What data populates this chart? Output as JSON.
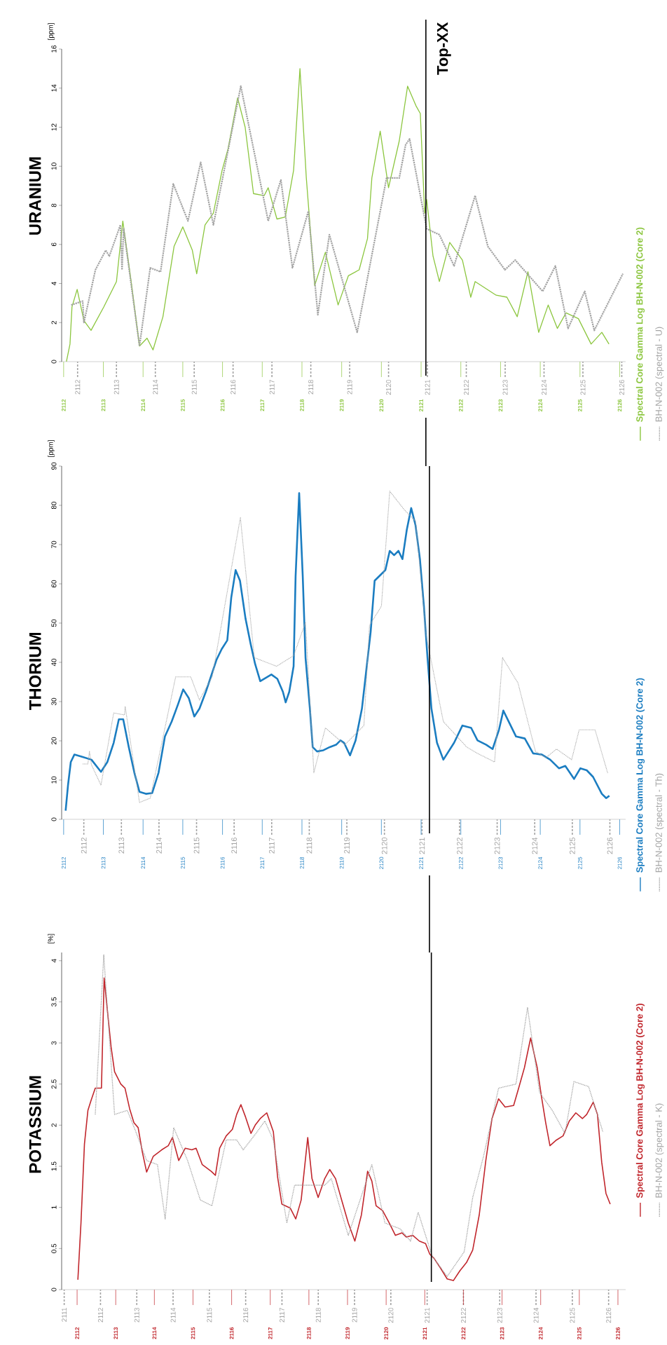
{
  "chart_data": [
    {
      "type": "line",
      "title": "URANIUM",
      "ylabel": "[ppm]",
      "legend": "right",
      "xlim": [
        2111.95,
        2126.15
      ],
      "ylim": [
        0,
        16
      ],
      "yticks": [
        0,
        2,
        4,
        6,
        8,
        10,
        12,
        14,
        16
      ],
      "xticks": [
        2112,
        2113,
        2114,
        2115,
        2116,
        2117,
        2118,
        2119,
        2120,
        2121,
        2122,
        2123,
        2124,
        2125,
        2126
      ],
      "x2lim": [
        2111.59,
        2126.1
      ],
      "x2ticks": [
        2112,
        2113,
        2114,
        2115,
        2116,
        2117,
        2118,
        2119,
        2120,
        2121,
        2122,
        2123,
        2124,
        2125,
        2126
      ],
      "ref_lines": [
        {
          "axis": "x",
          "value": 2121.12,
          "label": "Top-XX"
        }
      ],
      "series": [
        {
          "name": "Spectral Core Gamma Log BH-N-002 (Core 2)",
          "color": "#8cc63f",
          "line_style": "solid",
          "x": [
            2112.07,
            2112.16,
            2112.21,
            2112.34,
            2112.51,
            2112.69,
            2113.01,
            2113.33,
            2113.49,
            2113.7,
            2113.91,
            2114.1,
            2114.25,
            2114.5,
            2114.78,
            2115.0,
            2115.24,
            2115.35,
            2115.56,
            2115.77,
            2115.99,
            2116.14,
            2116.38,
            2116.57,
            2116.78,
            2117.05,
            2117.15,
            2117.37,
            2117.58,
            2117.79,
            2117.95,
            2118.11,
            2118.32,
            2118.59,
            2118.91,
            2119.17,
            2119.44,
            2119.65,
            2119.76,
            2119.97,
            2120.18,
            2120.45,
            2120.66,
            2120.87,
            2120.98,
            2121.09,
            2121.14,
            2121.3,
            2121.46,
            2121.72,
            2122.04,
            2122.25,
            2122.36,
            2122.89,
            2123.16,
            2123.42,
            2123.69,
            2123.96,
            2124.2,
            2124.43,
            2124.65,
            2124.96,
            2125.28,
            2125.55,
            2125.73
          ],
          "values": [
            0,
            0.9,
            2.8,
            3.7,
            2.1,
            1.6,
            2.8,
            4.1,
            7.2,
            4.1,
            0.8,
            1.2,
            0.6,
            2.3,
            5.9,
            6.9,
            5.7,
            4.5,
            7.0,
            7.6,
            9.8,
            10.9,
            13.5,
            12.0,
            8.6,
            8.5,
            8.9,
            7.3,
            7.4,
            9.8,
            15.0,
            9.4,
            3.9,
            5.6,
            2.9,
            4.4,
            4.7,
            6.3,
            9.4,
            11.8,
            8.9,
            11.3,
            14.1,
            13.1,
            12.7,
            7.6,
            8.3,
            5.4,
            4.1,
            6.1,
            5.2,
            3.3,
            4.1,
            3.4,
            3.3,
            2.3,
            4.6,
            1.5,
            2.9,
            1.7,
            2.5,
            2.2,
            0.9,
            1.5,
            0.9
          ]
        },
        {
          "name": "BH-N-002 (spectral - U)",
          "color": "#a3a3a3",
          "line_style": "dotted",
          "x": [
            2112.19,
            2112.48,
            2112.51,
            2112.8,
            2113.06,
            2113.15,
            2113.43,
            2113.47,
            2113.51,
            2113.91,
            2114.18,
            2114.44,
            2114.76,
            2115.13,
            2115.45,
            2115.77,
            2116.46,
            2117.15,
            2117.47,
            2117.76,
            2118.16,
            2118.4,
            2118.69,
            2119.39,
            2120.13,
            2120.45,
            2120.61,
            2120.71,
            2121.14,
            2121.46,
            2121.83,
            2122.36,
            2122.68,
            2123.11,
            2123.37,
            2124.06,
            2124.38,
            2124.7,
            2125.12,
            2125.36,
            2126.08
          ],
          "values": [
            2.9,
            3.1,
            2.0,
            4.7,
            5.7,
            5.4,
            7.0,
            4.7,
            6.8,
            0.8,
            4.8,
            4.6,
            9.1,
            7.2,
            10.2,
            7.0,
            14.1,
            7.2,
            9.3,
            4.8,
            7.7,
            2.4,
            6.5,
            1.5,
            9.4,
            9.4,
            11.1,
            11.4,
            6.8,
            6.5,
            4.9,
            8.5,
            5.9,
            4.7,
            5.2,
            3.6,
            4.9,
            1.7,
            3.6,
            1.6,
            4.5
          ]
        }
      ]
    },
    {
      "type": "line",
      "title": "THORIUM",
      "ylabel": "[ppm]",
      "legend": "right",
      "xlim": [
        2111.95,
        2126.15
      ],
      "ylim": [
        0,
        90
      ],
      "yticks": [
        0,
        10,
        20,
        30,
        40,
        50,
        60,
        70,
        80,
        90
      ],
      "xticks": [
        2112,
        2113,
        2114,
        2115,
        2116,
        2117,
        2118,
        2119,
        2120,
        2121,
        2122,
        2123,
        2124,
        2125,
        2126
      ],
      "x2lim": [
        2111.41,
        2126.42
      ],
      "x2ticks": [
        2112,
        2113,
        2114,
        2115,
        2116,
        2117,
        2118,
        2119,
        2120,
        2121,
        2122,
        2123,
        2124,
        2125,
        2126
      ],
      "ref_lines": [
        {
          "axis": "x",
          "value": 2121.21
        }
      ],
      "series": [
        {
          "name": "Spectral Core Gamma Log BH-N-002 (Core 2)",
          "color": "#1b7dc1",
          "line_style": "solid",
          "x": [
            2112.05,
            2112.11,
            2112.18,
            2112.27,
            2112.45,
            2112.7,
            2112.94,
            2113.1,
            2113.26,
            2113.39,
            2113.5,
            2113.64,
            2113.78,
            2113.91,
            2114.07,
            2114.23,
            2114.39,
            2114.55,
            2114.72,
            2114.88,
            2115.01,
            2115.15,
            2115.29,
            2115.42,
            2115.58,
            2115.69,
            2115.85,
            2115.98,
            2116.12,
            2116.22,
            2116.33,
            2116.44,
            2116.58,
            2116.71,
            2116.82,
            2116.95,
            2117.23,
            2117.38,
            2117.52,
            2117.59,
            2117.68,
            2117.79,
            2117.84,
            2117.93,
            2118.02,
            2118.09,
            2118.2,
            2118.27,
            2118.38,
            2118.54,
            2118.7,
            2118.86,
            2118.97,
            2119.06,
            2119.21,
            2119.35,
            2119.51,
            2119.62,
            2119.73,
            2119.83,
            2120.0,
            2120.1,
            2120.21,
            2120.32,
            2120.43,
            2120.53,
            2120.64,
            2120.75,
            2120.86,
            2120.97,
            2121.07,
            2121.16,
            2121.26,
            2121.4,
            2121.56,
            2121.83,
            2122.04,
            2122.26,
            2122.42,
            2122.64,
            2122.8,
            2122.96,
            2123.07,
            2123.23,
            2123.39,
            2123.61,
            2123.82,
            2124.04,
            2124.25,
            2124.47,
            2124.63,
            2124.85,
            2125.01,
            2125.17,
            2125.33,
            2125.55,
            2125.66,
            2125.74
          ],
          "values": [
            2.2,
            8.7,
            14.6,
            16.5,
            16.0,
            15.2,
            12.1,
            14.6,
            19.5,
            25.5,
            25.5,
            18.4,
            11.9,
            7.0,
            6.5,
            6.7,
            11.9,
            21.1,
            24.9,
            29.3,
            33.1,
            30.9,
            26.2,
            28.2,
            32.5,
            35.8,
            40.7,
            43.4,
            45.6,
            56.5,
            63.5,
            60.8,
            51.1,
            44.6,
            39.6,
            35.2,
            36.9,
            35.8,
            32.5,
            29.8,
            32.5,
            39.0,
            61.9,
            83.1,
            61.9,
            41.2,
            28.2,
            18.4,
            17.3,
            17.6,
            18.4,
            19.0,
            20.1,
            19.5,
            16.3,
            20.1,
            28.2,
            38.0,
            47.8,
            60.8,
            62.5,
            63.5,
            68.4,
            67.3,
            68.4,
            66.3,
            73.8,
            79.3,
            74.9,
            66.3,
            54.3,
            41.3,
            28.2,
            19.5,
            15.2,
            19.5,
            23.9,
            23.3,
            20.1,
            19.0,
            17.9,
            22.8,
            27.7,
            24.4,
            21.1,
            20.6,
            16.8,
            16.5,
            15.2,
            13.0,
            13.6,
            10.3,
            13.0,
            12.5,
            10.8,
            6.5,
            5.4,
            6.0
          ]
        },
        {
          "name": "BH-N-002 (spectral - Th)",
          "color": "#a3a3a3",
          "line_style": "dotted",
          "x": [
            2112.48,
            2112.61,
            2112.65,
            2112.7,
            2112.94,
            2113.26,
            2113.53,
            2113.55,
            2113.91,
            2114.18,
            2114.82,
            2115.2,
            2115.42,
            2115.74,
            2116.45,
            2116.8,
            2117.36,
            2117.79,
            2118.09,
            2118.3,
            2118.59,
            2119.08,
            2119.56,
            2119.7,
            2120.0,
            2120.21,
            2120.59,
            2120.86,
            2121.13,
            2121.56,
            2122.15,
            2122.42,
            2122.85,
            2123.05,
            2123.44,
            2123.88,
            2124.14,
            2124.41,
            2124.79,
            2124.98,
            2125.38,
            2125.7
          ],
          "values": [
            14.1,
            14.1,
            17.3,
            13.9,
            8.7,
            27.1,
            26.6,
            28.7,
            4.3,
            5.4,
            36.3,
            36.3,
            30.4,
            36.3,
            76.9,
            41.2,
            39.0,
            41.7,
            50.2,
            11.9,
            23.3,
            19.0,
            23.9,
            49.4,
            54.3,
            83.6,
            78.7,
            76.0,
            46.7,
            24.9,
            18.4,
            16.8,
            14.6,
            41.2,
            34.7,
            17.3,
            15.7,
            17.9,
            15.2,
            22.8,
            22.8,
            11.7
          ]
        }
      ]
    },
    {
      "type": "line",
      "title": "POTASSIUM",
      "ylabel": "[%]",
      "legend": "right",
      "xlim": [
        2111.6,
        2126.2
      ],
      "ylim": [
        0,
        4.1
      ],
      "yticks": [
        0,
        0.5,
        1,
        1.5,
        2,
        2.5,
        3,
        3.5,
        4
      ],
      "xticks": [
        2112,
        2113,
        2114,
        2115,
        2116,
        2117,
        2118,
        2119,
        2120,
        2121,
        2122,
        2123,
        2124,
        2125,
        2126
      ],
      "x2lim": [
        2110.93,
        2126.47
      ],
      "x2ticks": [
        2111,
        2112,
        2113,
        2114,
        2115,
        2116,
        2117,
        2118,
        2119,
        2120,
        2121,
        2122,
        2123,
        2124,
        2125,
        2126
      ],
      "ref_lines": [
        {
          "axis": "x",
          "value": 2121.17
        }
      ],
      "series": [
        {
          "name": "Spectral Core Gamma Log BH-N-002 (Core 2)",
          "color": "#c1272d",
          "line_style": "solid",
          "x": [
            2112.02,
            2112.1,
            2112.19,
            2112.28,
            2112.36,
            2112.47,
            2112.63,
            2112.7,
            2112.77,
            2112.88,
            2112.97,
            2113.13,
            2113.24,
            2113.36,
            2113.47,
            2113.58,
            2113.69,
            2113.8,
            2113.97,
            2114.19,
            2114.36,
            2114.47,
            2114.63,
            2114.8,
            2114.97,
            2115.08,
            2115.24,
            2115.47,
            2115.58,
            2115.69,
            2115.86,
            2116.02,
            2116.13,
            2116.24,
            2116.36,
            2116.5,
            2116.61,
            2116.74,
            2116.91,
            2117.08,
            2117.19,
            2117.3,
            2117.52,
            2117.66,
            2117.8,
            2117.97,
            2118.08,
            2118.24,
            2118.41,
            2118.54,
            2118.69,
            2118.86,
            2119.02,
            2119.19,
            2119.36,
            2119.52,
            2119.63,
            2119.74,
            2119.91,
            2120.08,
            2120.24,
            2120.41,
            2120.52,
            2120.69,
            2120.86,
            2121.02,
            2121.13,
            2121.24,
            2121.41,
            2121.58,
            2121.74,
            2121.91,
            2122.08,
            2122.24,
            2122.41,
            2122.58,
            2122.74,
            2122.91,
            2123.08,
            2123.3,
            2123.43,
            2123.58,
            2123.74,
            2123.91,
            2124.02,
            2124.13,
            2124.24,
            2124.41,
            2124.58,
            2124.74,
            2124.91,
            2125.08,
            2125.19,
            2125.36,
            2125.47,
            2125.58,
            2125.69,
            2125.8
          ],
          "values": [
            0.12,
            0.81,
            1.77,
            2.18,
            2.3,
            2.45,
            2.45,
            3.79,
            3.46,
            2.95,
            2.65,
            2.5,
            2.45,
            2.2,
            2.03,
            1.97,
            1.67,
            1.43,
            1.62,
            1.7,
            1.75,
            1.85,
            1.57,
            1.72,
            1.7,
            1.72,
            1.52,
            1.44,
            1.39,
            1.72,
            1.87,
            1.95,
            2.13,
            2.25,
            2.1,
            1.9,
            2.0,
            2.08,
            2.15,
            1.92,
            1.37,
            1.04,
            0.99,
            0.86,
            1.09,
            1.85,
            1.35,
            1.12,
            1.35,
            1.46,
            1.35,
            1.07,
            0.81,
            0.59,
            0.91,
            1.44,
            1.32,
            1.02,
            0.96,
            0.81,
            0.66,
            0.69,
            0.64,
            0.66,
            0.59,
            0.56,
            0.43,
            0.38,
            0.26,
            0.13,
            0.11,
            0.23,
            0.33,
            0.48,
            0.91,
            1.57,
            2.08,
            2.32,
            2.22,
            2.24,
            2.45,
            2.7,
            3.06,
            2.7,
            2.35,
            2.03,
            1.75,
            1.82,
            1.87,
            2.05,
            2.15,
            2.08,
            2.13,
            2.28,
            2.13,
            1.55,
            1.17,
            1.04
          ]
        },
        {
          "name": "BH-N-002 (spectral - K)",
          "color": "#a3a3a3",
          "line_style": "dotted",
          "x": [
            2112.47,
            2112.69,
            2112.97,
            2113.3,
            2113.52,
            2113.8,
            2114.08,
            2114.28,
            2114.5,
            2114.86,
            2115.19,
            2115.49,
            2115.86,
            2116.13,
            2116.3,
            2116.63,
            2116.86,
            2117.08,
            2117.43,
            2117.63,
            2118.41,
            2118.58,
            2119.02,
            2119.63,
            2119.97,
            2120.36,
            2120.63,
            2120.83,
            2121.19,
            2121.58,
            2122.02,
            2122.24,
            2122.52,
            2122.91,
            2123.36,
            2123.66,
            2123.97,
            2124.3,
            2124.63,
            2124.86,
            2125.24,
            2125.61
          ],
          "values": [
            2.13,
            4.07,
            2.13,
            2.18,
            1.92,
            1.57,
            1.52,
            0.86,
            1.97,
            1.57,
            1.09,
            1.02,
            1.82,
            1.82,
            1.7,
            1.9,
            2.05,
            1.82,
            0.81,
            1.27,
            1.27,
            1.35,
            0.66,
            1.52,
            0.81,
            0.74,
            0.59,
            0.94,
            0.41,
            0.16,
            0.46,
            1.12,
            1.62,
            2.45,
            2.5,
            3.43,
            2.4,
            2.18,
            1.9,
            2.53,
            2.47,
            1.92
          ]
        }
      ]
    }
  ]
}
